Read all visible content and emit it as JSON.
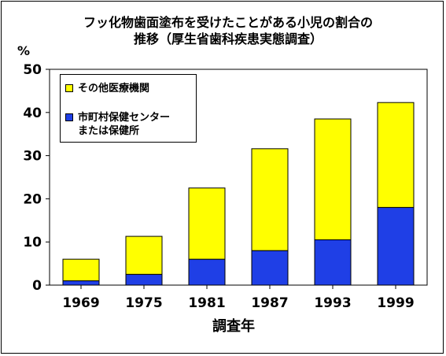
{
  "chart_data": {
    "type": "bar",
    "stacked": true,
    "title": "フッ化物歯面塗布を受けたことがある小児の割合の\n推移（厚生省歯科疾患実態調査）",
    "ylabel": "%",
    "xlabel": "調査年",
    "categories": [
      "1969",
      "1975",
      "1981",
      "1987",
      "1993",
      "1999"
    ],
    "ylim": [
      0,
      50
    ],
    "yticks": [
      0,
      10,
      20,
      30,
      40,
      50
    ],
    "grid": false,
    "legend_position": "top-left",
    "series": [
      {
        "name": "市町村保健センター\nまたは保健所",
        "color": "#1f3fe6",
        "values": [
          1.0,
          2.5,
          6.0,
          8.0,
          10.5,
          18.0
        ]
      },
      {
        "name": "その他医療機関",
        "color": "#ffff00",
        "values": [
          5.0,
          8.8,
          16.5,
          23.6,
          28.0,
          24.3
        ]
      }
    ]
  }
}
